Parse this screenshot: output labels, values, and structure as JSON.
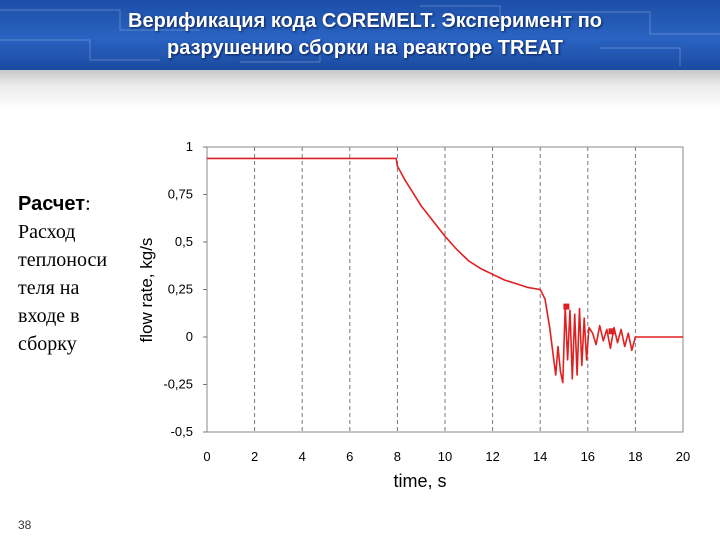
{
  "slide": {
    "title_line1": "Верификация кода COREMELT. Эксперимент по",
    "title_line2": "разрушению сборки на реакторе  TREAT",
    "side_heading": "Расчет",
    "side_colon": ":",
    "side_lines": [
      "Расход",
      "теплоноси",
      "теля на",
      "входе в",
      "сборку"
    ],
    "page_number": "38"
  },
  "colors": {
    "header_blue": "#1f56b4",
    "series_red": "#e02020"
  },
  "chart_data": {
    "type": "line",
    "xlabel": "time, s",
    "ylabel": "flow rate, kg/s",
    "xlim": [
      0,
      20
    ],
    "ylim": [
      -0.5,
      1
    ],
    "x_ticks": [
      "0",
      "2",
      "4",
      "6",
      "8",
      "10",
      "12",
      "14",
      "16",
      "18",
      "20"
    ],
    "y_ticks": [
      "1",
      "0,75",
      "0,5",
      "0,25",
      "0",
      "-0,25",
      "-0,5"
    ],
    "grid": "vertical dashed at each x tick",
    "legend": "none",
    "series": [
      {
        "line_color": "#e02020",
        "x": [
          0,
          2,
          4,
          6,
          7.95,
          8,
          8.3,
          8.6,
          9,
          9.5,
          10,
          10.5,
          11,
          11.5,
          12,
          12.5,
          13,
          13.5,
          14,
          14.2,
          14.4,
          14.55,
          14.65,
          14.75,
          14.85,
          14.95,
          15.05,
          15.15,
          15.25,
          15.35,
          15.45,
          15.55,
          15.65,
          15.75,
          15.85,
          15.95,
          16.05,
          16.2,
          16.35,
          16.5,
          16.65,
          16.8,
          16.95,
          17.1,
          17.25,
          17.4,
          17.55,
          17.7,
          17.85,
          18,
          18.1,
          18.5,
          19,
          20
        ],
        "y": [
          0.94,
          0.94,
          0.94,
          0.94,
          0.94,
          0.9,
          0.83,
          0.77,
          0.69,
          0.61,
          0.53,
          0.46,
          0.4,
          0.36,
          0.33,
          0.3,
          0.28,
          0.26,
          0.25,
          0.2,
          0.05,
          -0.1,
          -0.2,
          -0.05,
          -0.18,
          -0.24,
          0.16,
          -0.12,
          0.14,
          -0.22,
          0.12,
          -0.2,
          0.15,
          -0.15,
          0.1,
          -0.12,
          0.05,
          0.02,
          -0.04,
          0.06,
          -0.02,
          0.04,
          -0.06,
          0.05,
          -0.03,
          0.04,
          -0.05,
          0.02,
          -0.07,
          0.0,
          0.0,
          0.0,
          0.0,
          0.0
        ]
      }
    ],
    "markers": [
      {
        "x": 15.1,
        "y": 0.16
      },
      {
        "x": 17.0,
        "y": 0.03
      }
    ]
  }
}
